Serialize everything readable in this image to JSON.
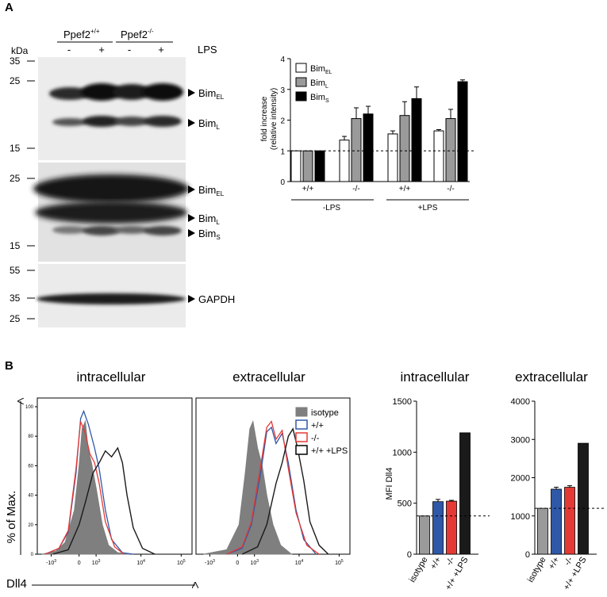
{
  "panelA": {
    "label": "A",
    "kda": "kDa",
    "genotypes": {
      "wt": {
        "base": "Ppef2",
        "sup": "+/+"
      },
      "ko": {
        "base": "Ppef2",
        "sup": "-/-"
      }
    },
    "lps_label": "LPS",
    "lane_signs": [
      "-",
      "+",
      "-",
      "+"
    ],
    "blot1": {
      "markers": [
        "35",
        "25",
        "15"
      ],
      "bands": [
        {
          "base": "Bim",
          "sub": "EL"
        },
        {
          "base": "Bim",
          "sub": "L"
        }
      ]
    },
    "blot2": {
      "markers": [
        "25",
        "15"
      ],
      "bands": [
        {
          "base": "Bim",
          "sub": "EL"
        },
        {
          "base": "Bim",
          "sub": "L"
        },
        {
          "base": "Bim",
          "sub": "S"
        }
      ]
    },
    "blot3": {
      "markers": [
        "55",
        "35",
        "25"
      ],
      "bands": [
        {
          "base": "GAPDH",
          "sub": ""
        }
      ]
    }
  },
  "panelB": {
    "label": "B",
    "hist_titles": [
      "intracellular",
      "extracellular"
    ],
    "hist_ylabel": "% of Max.",
    "hist_xlabel": "Dll4",
    "hist_yticks": [
      "100",
      "80",
      "60",
      "40",
      "20",
      "0"
    ],
    "hist_xticks": [
      "-10",
      "0",
      "10",
      "10",
      "10"
    ],
    "hist_xtick_exps": [
      "3",
      "",
      "3",
      "4",
      "5"
    ],
    "legend": [
      "isotype",
      "+/+",
      "-/-",
      "+/+ +LPS"
    ],
    "bar_titles": [
      "intracellular",
      "extracellular"
    ],
    "bar_ylabel": "MFI Dll4"
  },
  "colors": {
    "isotype": "#7f7f7f",
    "wt": "#3058a8",
    "ko": "#e53935",
    "lps": "#1a1a1a",
    "gray_bar": "#9a9a9a"
  },
  "chart_data": [
    {
      "type": "bar",
      "ylabel": "fold increase (relative intensity)",
      "ylim": [
        0,
        4
      ],
      "yticks": [
        "0",
        "1",
        "2",
        "3",
        "4"
      ],
      "categories": [
        "+/+",
        "-/-",
        "+/+",
        "-/-"
      ],
      "groups": [
        "-LPS",
        "+LPS"
      ],
      "series": [
        {
          "name": "Bim",
          "sub": "EL",
          "values": [
            1.0,
            1.35,
            1.55,
            1.65
          ],
          "errors": [
            0,
            0.12,
            0.1,
            0.04
          ]
        },
        {
          "name": "Bim",
          "sub": "L",
          "values": [
            1.0,
            2.05,
            2.15,
            2.05
          ],
          "errors": [
            0,
            0.35,
            0.45,
            0.3
          ]
        },
        {
          "name": "Bim",
          "sub": "S",
          "values": [
            1.0,
            2.2,
            2.7,
            3.25
          ],
          "errors": [
            0,
            0.25,
            0.38,
            0.06
          ]
        }
      ],
      "reference_line": 1,
      "legend_position": "top-left"
    },
    {
      "type": "bar",
      "title": "intracellular",
      "ylabel": "MFI Dll4",
      "ylim": [
        0,
        1500
      ],
      "yticks": [
        "0",
        "500",
        "1000",
        "1500"
      ],
      "categories": [
        "isotype",
        "+/+",
        "-/-",
        "+/+ +LPS"
      ],
      "values": [
        375,
        515,
        520,
        1190
      ],
      "errors": [
        0,
        22,
        8,
        0
      ],
      "reference_line": 375
    },
    {
      "type": "bar",
      "title": "extracellular",
      "ylim": [
        0,
        4000
      ],
      "yticks": [
        "0",
        "1000",
        "2000",
        "3000",
        "4000"
      ],
      "categories": [
        "isotype",
        "+/+",
        "-/-",
        "+/+ +LPS"
      ],
      "values": [
        1200,
        1700,
        1750,
        2900
      ],
      "errors": [
        0,
        50,
        40,
        0
      ],
      "reference_line": 1200
    }
  ]
}
